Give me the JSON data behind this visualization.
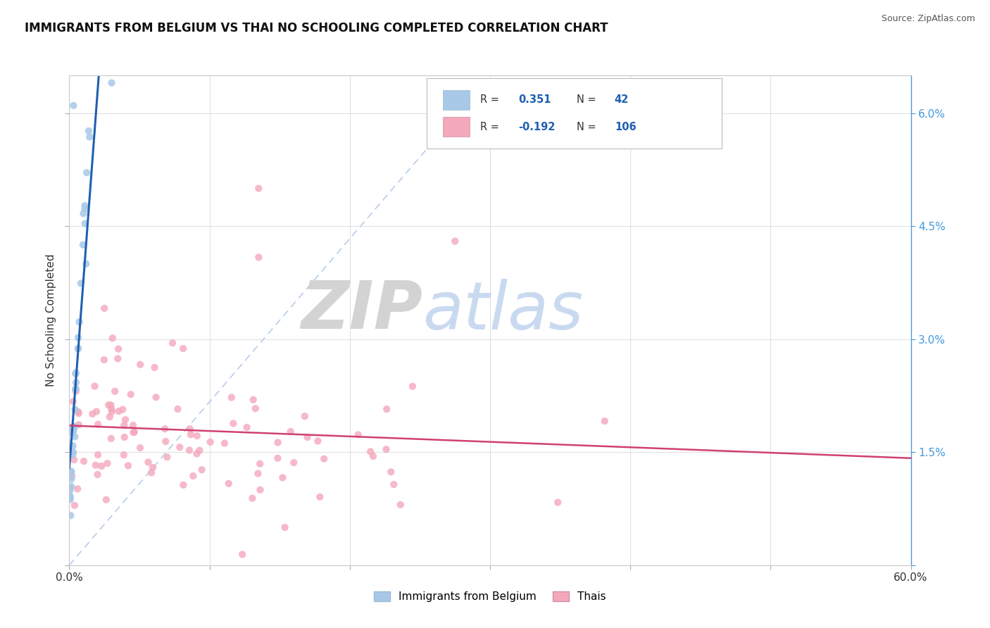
{
  "title": "IMMIGRANTS FROM BELGIUM VS THAI NO SCHOOLING COMPLETED CORRELATION CHART",
  "source": "Source: ZipAtlas.com",
  "ylabel": "No Schooling Completed",
  "watermark_zip": "ZIP",
  "watermark_atlas": "atlas",
  "xmin": 0.0,
  "xmax": 0.6,
  "ymin": 0.0,
  "ymax": 0.065,
  "x_ticks": [
    0.0,
    0.1,
    0.2,
    0.3,
    0.4,
    0.5,
    0.6
  ],
  "x_tick_labels": [
    "0.0%",
    "",
    "",
    "",
    "",
    "",
    "60.0%"
  ],
  "y_ticks": [
    0.0,
    0.015,
    0.03,
    0.045,
    0.06
  ],
  "y_tick_labels_right": [
    "",
    "1.5%",
    "3.0%",
    "4.5%",
    "6.0%"
  ],
  "blue_color": "#a8c8e8",
  "pink_color": "#f4a8bc",
  "blue_line_color": "#2060b0",
  "pink_line_color": "#d04070",
  "diag_color": "#b0c8e8",
  "title_color": "#111111",
  "source_color": "#555555",
  "grid_color": "#e0e0e0",
  "right_axis_color": "#4499dd",
  "legend_r_color": "#2060b0",
  "legend_n_color": "#2060b0",
  "blue_label": "Immigrants from Belgium",
  "pink_label": "Thais",
  "R_blue": "0.351",
  "N_blue": "42",
  "R_pink": "-0.192",
  "N_pink": "106",
  "blue_seed": 77,
  "pink_seed": 55
}
